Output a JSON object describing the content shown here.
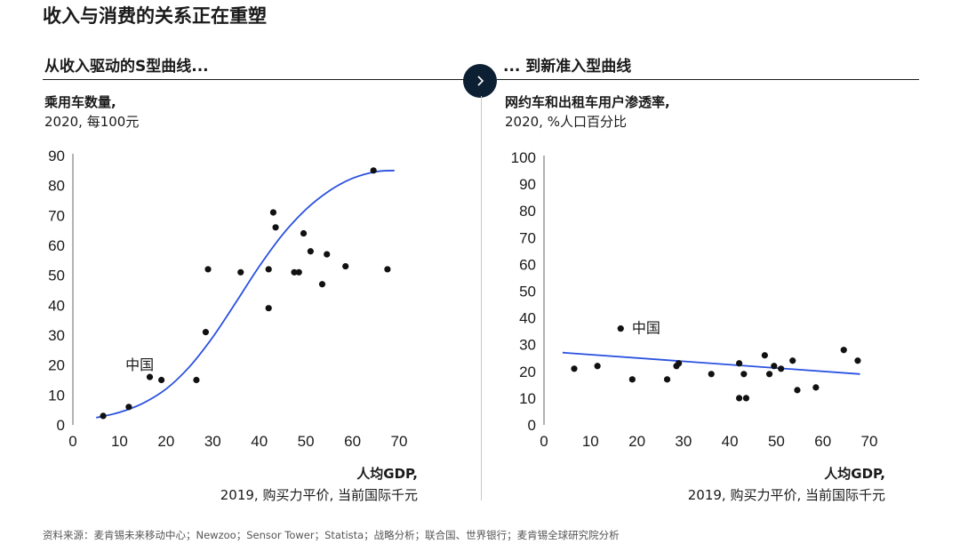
{
  "title": "收入与消费的关系正在重塑",
  "left": {
    "subtitle": "从收入驱动的S型曲线...",
    "ylabel_line1": "乘用车数量,",
    "ylabel_line2": "2020, 每100元",
    "xlabel_line1": "人均GDP,",
    "xlabel_line2": "2019, 购买力平价, 当前国际千元"
  },
  "right": {
    "subtitle": "... 到新准入型曲线",
    "ylabel_line1": "网约车和出租车用户渗透率,",
    "ylabel_line2": "2020, %人口百分比",
    "xlabel_line1": "人均GDP,",
    "xlabel_line2": "2019, 购买力平价, 当前国际千元"
  },
  "source": "资料来源：麦肯锡未来移动中心；Newzoo；Sensor Tower；Statista；战略分析；联合国、世界银行；麦肯锡全球研究院分析",
  "colors": {
    "dots": "#111111",
    "curve": "#2951e0",
    "text": "#1a1a1a",
    "accent": "#0d1f33"
  },
  "arrow_icon": "chevron-right-icon",
  "chart_data": [
    {
      "type": "scatter",
      "xlim": [
        0,
        70
      ],
      "ylim": [
        0,
        90
      ],
      "xticks": [
        0,
        10,
        20,
        30,
        40,
        50,
        60,
        70
      ],
      "yticks": [
        0,
        10,
        20,
        30,
        40,
        50,
        60,
        70,
        80,
        90
      ],
      "annotation": {
        "text": "中国",
        "x": 17,
        "y": 16
      },
      "points": [
        [
          6.5,
          3
        ],
        [
          12,
          6
        ],
        [
          16.5,
          16
        ],
        [
          19,
          15
        ],
        [
          26.5,
          15
        ],
        [
          28.5,
          31
        ],
        [
          29,
          52
        ],
        [
          36,
          51
        ],
        [
          42,
          52
        ],
        [
          42,
          39
        ],
        [
          43,
          71
        ],
        [
          43.5,
          66
        ],
        [
          47.5,
          51
        ],
        [
          48.5,
          51
        ],
        [
          49.5,
          64
        ],
        [
          51,
          58
        ],
        [
          53.5,
          47
        ],
        [
          54.5,
          57
        ],
        [
          58.5,
          53
        ],
        [
          64.5,
          85
        ],
        [
          67.5,
          52
        ]
      ],
      "curve": "logistic",
      "curve_points": [
        [
          5,
          2.4
        ],
        [
          10,
          4.2
        ],
        [
          15,
          7.2
        ],
        [
          20,
          12.0
        ],
        [
          25,
          19.4
        ],
        [
          30,
          29.3
        ],
        [
          35,
          41.0
        ],
        [
          40,
          53.0
        ],
        [
          45,
          63.6
        ],
        [
          50,
          72.0
        ],
        [
          55,
          78.2
        ],
        [
          60,
          82.4
        ],
        [
          65,
          84.6
        ],
        [
          69,
          85
        ]
      ]
    },
    {
      "type": "scatter",
      "xlim": [
        0,
        70
      ],
      "ylim": [
        0,
        100
      ],
      "xticks": [
        0,
        10,
        20,
        30,
        40,
        50,
        60,
        70
      ],
      "yticks": [
        0,
        10,
        20,
        30,
        40,
        50,
        60,
        70,
        80,
        90,
        100
      ],
      "annotation": {
        "text": "中国",
        "x": 17,
        "y": 36
      },
      "points": [
        [
          16.5,
          36
        ],
        [
          6.5,
          21
        ],
        [
          11.5,
          22
        ],
        [
          19,
          17
        ],
        [
          26.5,
          17
        ],
        [
          28.5,
          22
        ],
        [
          29,
          23
        ],
        [
          36,
          19
        ],
        [
          42,
          10
        ],
        [
          42,
          23
        ],
        [
          43,
          19
        ],
        [
          43.5,
          10
        ],
        [
          47.5,
          26
        ],
        [
          48.5,
          19
        ],
        [
          49.5,
          22
        ],
        [
          51,
          21
        ],
        [
          53.5,
          24
        ],
        [
          54.5,
          13
        ],
        [
          58.5,
          14
        ],
        [
          64.5,
          28
        ],
        [
          67.5,
          24
        ]
      ],
      "curve": "linear",
      "curve_points": [
        [
          4,
          27
        ],
        [
          68,
          19
        ]
      ]
    }
  ]
}
